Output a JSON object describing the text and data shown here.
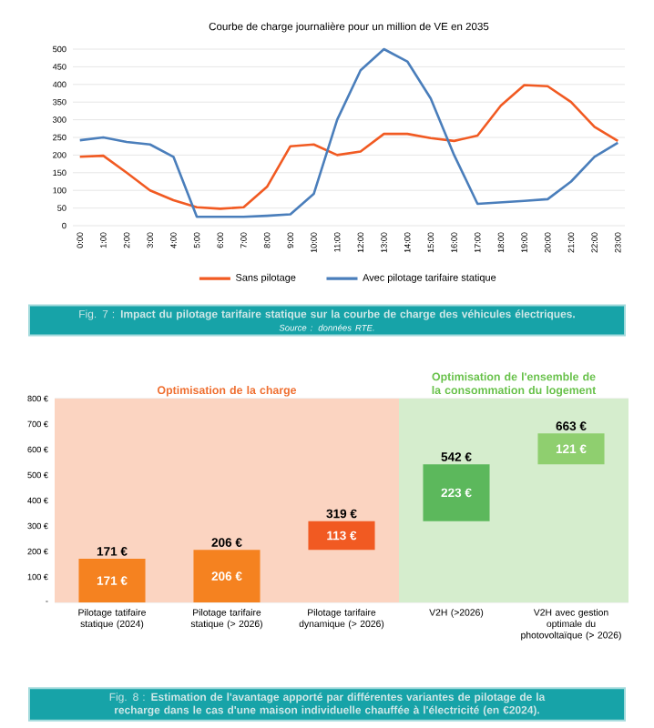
{
  "chart_data": [
    {
      "type": "line",
      "title": "Courbe de charge journalière pour un million de VE en 2035",
      "categories": [
        "0:00",
        "1:00",
        "2:00",
        "3:00",
        "4:00",
        "5:00",
        "6:00",
        "7:00",
        "8:00",
        "9:00",
        "10:00",
        "11:00",
        "12:00",
        "13:00",
        "14:00",
        "15:00",
        "16:00",
        "17:00",
        "18:00",
        "19:00",
        "20:00",
        "21:00",
        "22:00",
        "23:00"
      ],
      "series": [
        {
          "name": "Sans pilotage",
          "color": "#f15a22",
          "values": [
            195,
            198,
            150,
            100,
            72,
            52,
            48,
            52,
            110,
            225,
            230,
            200,
            210,
            260,
            260,
            248,
            240,
            255,
            340,
            398,
            395,
            350,
            280,
            240
          ]
        },
        {
          "name": "Avec pilotage tarifaire statique",
          "color": "#4a7ebb",
          "values": [
            242,
            250,
            237,
            230,
            195,
            25,
            25,
            25,
            28,
            32,
            90,
            300,
            440,
            500,
            465,
            360,
            200,
            62,
            66,
            70,
            75,
            125,
            195,
            235
          ]
        }
      ],
      "ylim": [
        0,
        500
      ],
      "yticks": [
        0,
        50,
        100,
        150,
        200,
        250,
        300,
        350,
        400,
        450,
        500
      ],
      "grid": "y",
      "legend": "bottom",
      "annotations": [
        "Fig. 7 : **Impact du pilotage tarifaire statique sur la courbe de charge des véhicules électriques.**",
        "Source : données RTE."
      ]
    },
    {
      "type": "bar",
      "categories": [
        "Pilotage tatifaire statique (2024)",
        "Pilotage tarifaire statique (> 2026)",
        "Pilotage tarifaire dynamique (> 2026)",
        "V2H (>2026)",
        "V2H avec gestion optimale du photovoltaïque (> 2026)"
      ],
      "values": [
        171,
        206,
        113,
        223,
        121
      ],
      "base": [
        0,
        0,
        206,
        319,
        542
      ],
      "colors": [
        "#f58220",
        "#f58220",
        "#f15a22",
        "#5cb85c",
        "#8fcf6f"
      ],
      "value_labels": [
        "171 €",
        "206 €",
        "113 €",
        "223 €",
        "121 €"
      ],
      "ylim": [
        0,
        800
      ],
      "yticks": [
        {
          "value": 0,
          "label": "-"
        },
        {
          "value": 100,
          "label": "100 €"
        },
        {
          "value": 200,
          "label": "200 €"
        },
        {
          "value": 300,
          "label": "300 €"
        },
        {
          "value": 400,
          "label": "400 €"
        },
        {
          "value": 500,
          "label": "500 €"
        },
        {
          "value": 600,
          "label": "600 €"
        },
        {
          "value": 700,
          "label": "700 €"
        },
        {
          "value": 800,
          "label": "800 €"
        }
      ],
      "grid": "y",
      "bands": [
        {
          "axis": "x",
          "from": "Pilotage tatifaire statique (2024)",
          "to": "Pilotage tarifaire dynamique (> 2026)",
          "label": "Optimisation de la charge",
          "color": "#fbd4c1"
        },
        {
          "axis": "x",
          "from": "V2H (>2026)",
          "to": "V2H avec gestion optimale du photovoltaïque (> 2026)",
          "label": "Optimisation de l'ensemble de la consommation du logement",
          "color": "#d5edcd"
        }
      ],
      "annotations": [
        {
          "text": "171 €",
          "x": "Pilotage tatifaire statique (2024)",
          "y": 171
        },
        {
          "text": "206 €",
          "x": "Pilotage tarifaire statique (> 2026)",
          "y": 206
        },
        {
          "text": "319 €",
          "x": "Pilotage tarifaire dynamique (> 2026)",
          "y": 319
        },
        {
          "text": "542 €",
          "x": "V2H (>2026)",
          "y": 542
        },
        {
          "text": "663 €",
          "x": "V2H avec gestion optimale du photovoltaïque (> 2026)",
          "y": 663
        },
        "Fig. 8 : **Estimation de l'avantage apporté par différentes variantes de pilotage de la recharge dans le cas d'une maison individuelle chauffée à l'électricité (en €2024).**"
      ]
    }
  ]
}
